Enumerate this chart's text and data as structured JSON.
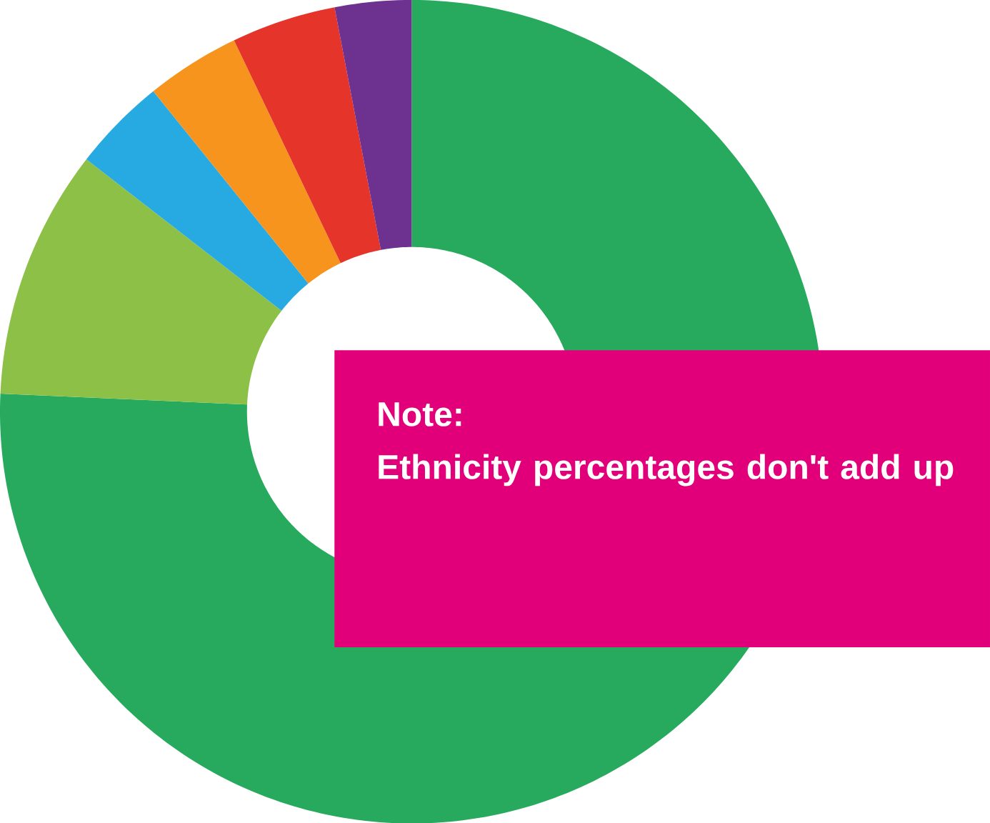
{
  "chart_data": {
    "type": "donut",
    "categories": [
      null,
      null,
      null,
      null,
      null,
      null
    ],
    "values": [
      75.7,
      9.8,
      3.7,
      3.7,
      4.1,
      3.0
    ],
    "colors": [
      "#27aa5e",
      "#8dc047",
      "#27aae1",
      "#f7941d",
      "#e5352b",
      "#6d3190"
    ],
    "annotations": [
      "**Note:**",
      "**Ethnicity percentages don't add up**"
    ]
  }
}
